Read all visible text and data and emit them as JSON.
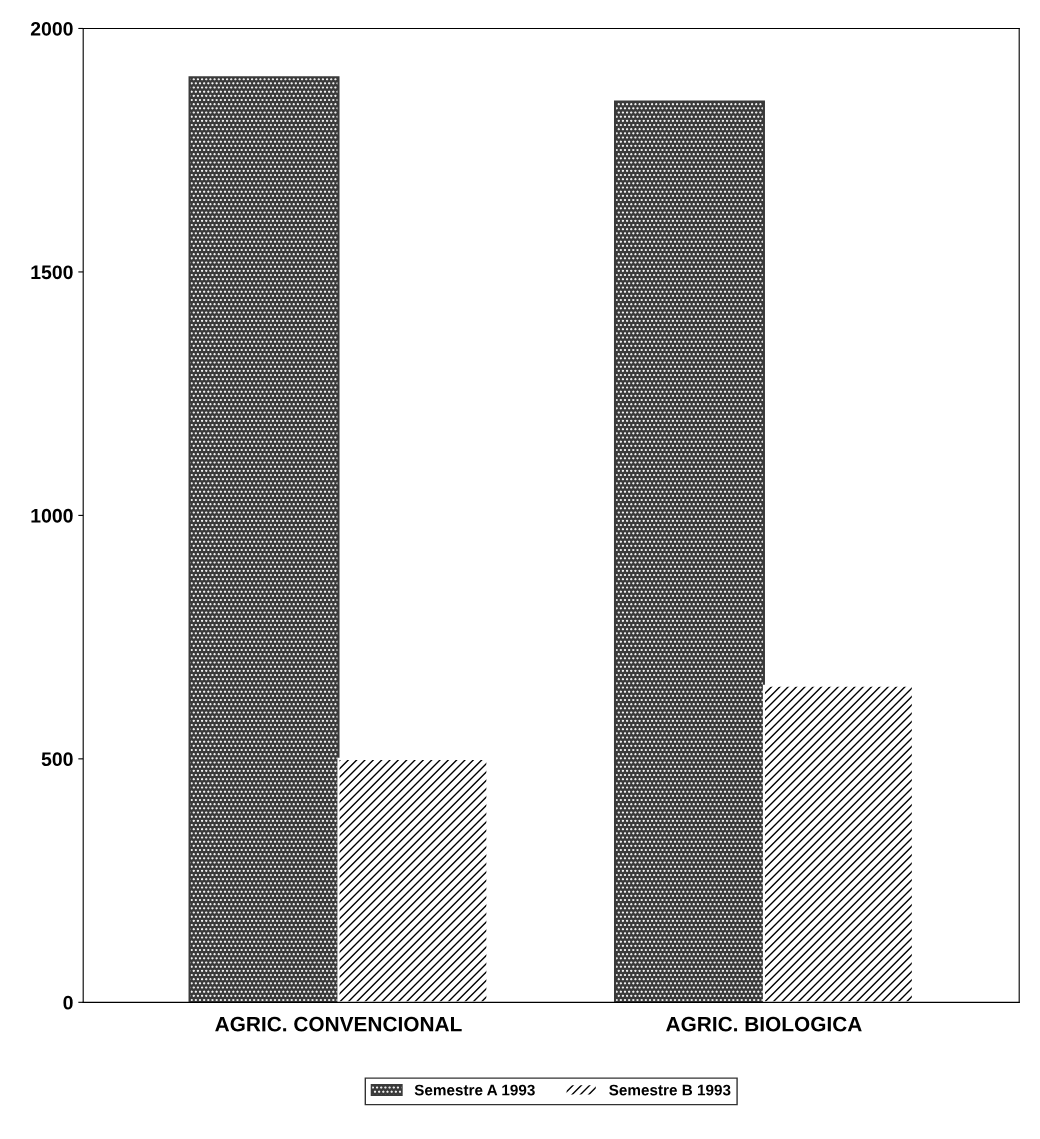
{
  "chart_data": {
    "type": "bar",
    "categories": [
      "AGRIC. CONVENCIONAL",
      "AGRIC. BIOLOGICA"
    ],
    "series": [
      {
        "name": "Semestre A 1993",
        "color": "#3a3a3a",
        "values": [
          1900,
          1850
        ]
      },
      {
        "name": "Semestre B 1993",
        "color": "#ffffff",
        "values": [
          500,
          650
        ]
      }
    ],
    "ylim": [
      0,
      2000
    ],
    "yticks": [
      0,
      500,
      1000,
      1500,
      2000
    ],
    "grid": false,
    "legend": "bottom"
  }
}
